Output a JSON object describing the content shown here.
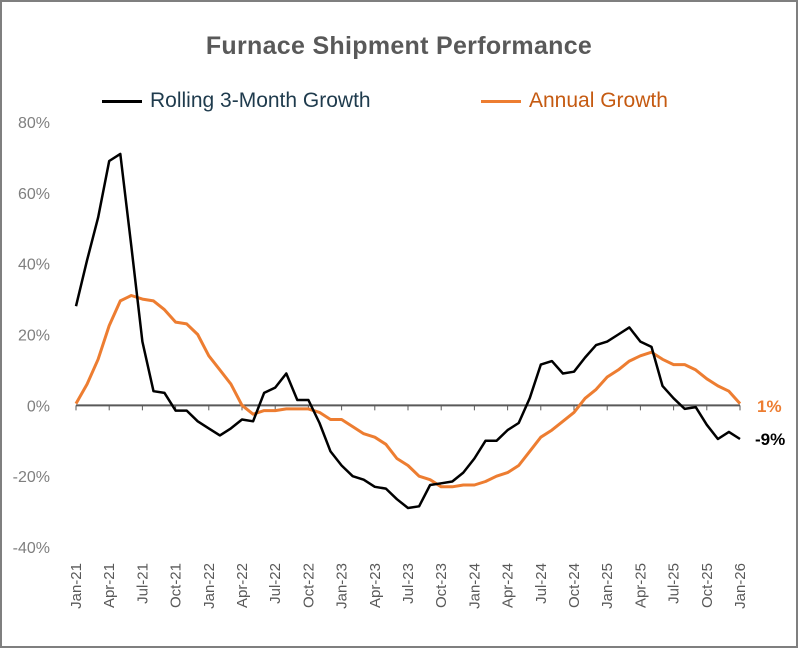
{
  "chart_data": {
    "type": "line",
    "title": "Furnace Shipment Performance",
    "xlabel": "",
    "ylabel": "",
    "ylim": [
      -40,
      80
    ],
    "y_ticks": [
      "80%",
      "60%",
      "40%",
      "20%",
      "0%",
      "-20%",
      "-40%"
    ],
    "y_tick_values": [
      80,
      60,
      40,
      20,
      0,
      -20,
      -40
    ],
    "x_tick_labels": [
      "Jan-21",
      "Apr-21",
      "Jul-21",
      "Oct-21",
      "Jan-22",
      "Apr-22",
      "Jul-22",
      "Oct-22",
      "Jan-23",
      "Apr-23",
      "Jul-23",
      "Oct-23",
      "Jan-24",
      "Apr-24",
      "Jul-24",
      "Oct-24",
      "Jan-25",
      "Apr-25",
      "Jul-25",
      "Oct-25",
      "Jan-26"
    ],
    "x_tick_indices": [
      0,
      3,
      6,
      9,
      12,
      15,
      18,
      21,
      24,
      27,
      30,
      33,
      36,
      39,
      42,
      45,
      48,
      51,
      54,
      57,
      60
    ],
    "n_points": 61,
    "legend_position": "top",
    "grid": false,
    "series": [
      {
        "name": "Rolling 3-Month Growth",
        "color": "#000000",
        "values": [
          28,
          41,
          53,
          69,
          71,
          45,
          18,
          4,
          3.5,
          -1.5,
          -1.5,
          -4.5,
          -6.5,
          -8.5,
          -6.5,
          -4,
          -4.5,
          3.5,
          5,
          9,
          1.5,
          1.5,
          -5,
          -13,
          -17,
          -20,
          -21,
          -23,
          -23.5,
          -26.5,
          -29,
          -28.5,
          -22.5,
          -22,
          -21.5,
          -19,
          -15,
          -10,
          -10,
          -7,
          -5,
          2,
          11.5,
          12.5,
          9,
          9.5,
          13.5,
          17,
          18,
          20,
          22,
          18,
          16.5,
          5.5,
          2,
          -1,
          -0.5,
          -5.5,
          -9.5,
          -7.5,
          -9.5
        ],
        "end_label": "-9%"
      },
      {
        "name": "Annual Growth",
        "color": "#ed7d31",
        "values": [
          0.5,
          6,
          13,
          22.5,
          29.5,
          31,
          30,
          29.5,
          27,
          23.5,
          23,
          20,
          14,
          10,
          6,
          0,
          -2.5,
          -1.5,
          -1.5,
          -1,
          -1,
          -1,
          -2,
          -4,
          -4,
          -6,
          -8,
          -9,
          -11,
          -15,
          -17,
          -20,
          -21,
          -23,
          -23,
          -22.5,
          -22.5,
          -21.5,
          -20,
          -19,
          -17,
          -13,
          -9,
          -7,
          -4.5,
          -2,
          2,
          4.5,
          8,
          10,
          12.5,
          14,
          15,
          13,
          11.5,
          11.5,
          10,
          7.5,
          5.5,
          4,
          0.5
        ],
        "end_label": "1%"
      }
    ]
  }
}
